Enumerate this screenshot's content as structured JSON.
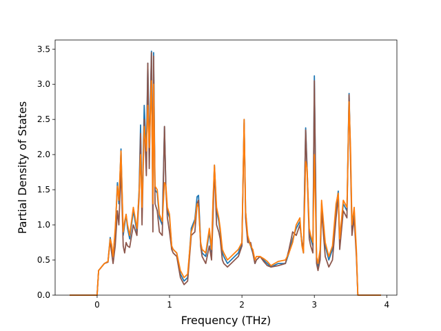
{
  "chart_data": {
    "type": "line",
    "title": "",
    "xlabel": "Frequency (THz)",
    "ylabel": "Partial Density of States",
    "xlim": [
      -0.58,
      4.14
    ],
    "ylim": [
      0.0,
      3.63
    ],
    "xticks": [
      0,
      1,
      2,
      3,
      4
    ],
    "xtick_labels": [
      "0",
      "1",
      "2",
      "3",
      "4"
    ],
    "yticks": [
      0.0,
      0.5,
      1.0,
      1.5,
      2.0,
      2.5,
      3.0,
      3.5
    ],
    "ytick_labels": [
      "0.0",
      "0.5",
      "1.0",
      "1.5",
      "2.0",
      "2.5",
      "3.0",
      "3.5"
    ],
    "grid": false,
    "legend": "none",
    "series": [
      {
        "color": "#1f77b4",
        "x": [
          -0.38,
          0.0,
          0.02,
          0.1,
          0.15,
          0.18,
          0.2,
          0.22,
          0.25,
          0.28,
          0.3,
          0.33,
          0.36,
          0.38,
          0.4,
          0.42,
          0.45,
          0.5,
          0.55,
          0.58,
          0.6,
          0.62,
          0.65,
          0.68,
          0.7,
          0.72,
          0.75,
          0.77,
          0.78,
          0.8,
          0.83,
          0.86,
          0.9,
          0.93,
          0.95,
          0.97,
          1.0,
          1.03,
          1.05,
          1.1,
          1.15,
          1.2,
          1.25,
          1.3,
          1.35,
          1.38,
          1.4,
          1.43,
          1.45,
          1.5,
          1.55,
          1.58,
          1.6,
          1.62,
          1.65,
          1.68,
          1.7,
          1.73,
          1.75,
          1.8,
          1.85,
          1.9,
          1.95,
          2.0,
          2.03,
          2.05,
          2.08,
          2.12,
          2.15,
          2.18,
          2.2,
          2.25,
          2.3,
          2.35,
          2.4,
          2.5,
          2.6,
          2.65,
          2.7,
          2.75,
          2.8,
          2.83,
          2.85,
          2.88,
          2.9,
          2.93,
          2.95,
          2.98,
          3.0,
          3.03,
          3.05,
          3.08,
          3.1,
          3.15,
          3.2,
          3.25,
          3.3,
          3.33,
          3.35,
          3.4,
          3.45,
          3.48,
          3.5,
          3.52,
          3.55,
          3.58,
          3.6,
          3.92
        ],
        "y": [
          0.0,
          0.0,
          0.35,
          0.45,
          0.48,
          0.82,
          0.7,
          0.55,
          0.9,
          1.6,
          1.3,
          2.08,
          0.85,
          1.0,
          1.15,
          0.95,
          0.8,
          1.2,
          0.9,
          1.5,
          2.42,
          1.2,
          2.7,
          2.0,
          3.3,
          2.0,
          3.47,
          1.2,
          3.45,
          1.5,
          1.45,
          1.1,
          1.0,
          2.4,
          1.5,
          1.2,
          1.1,
          0.7,
          0.65,
          0.6,
          0.3,
          0.2,
          0.25,
          0.95,
          1.08,
          1.4,
          1.42,
          0.75,
          0.6,
          0.55,
          0.9,
          0.6,
          1.3,
          1.85,
          1.2,
          1.05,
          0.9,
          0.6,
          0.55,
          0.45,
          0.5,
          0.55,
          0.6,
          0.75,
          2.5,
          1.2,
          0.8,
          0.7,
          0.6,
          0.45,
          0.5,
          0.55,
          0.5,
          0.45,
          0.4,
          0.45,
          0.45,
          0.6,
          0.8,
          0.95,
          1.05,
          0.7,
          0.6,
          2.38,
          1.8,
          0.9,
          0.8,
          0.7,
          3.12,
          0.5,
          0.4,
          0.6,
          1.3,
          0.7,
          0.5,
          0.65,
          1.25,
          1.48,
          0.75,
          1.3,
          1.2,
          2.87,
          2.0,
          0.95,
          1.2,
          0.6,
          0.0,
          0.0
        ]
      },
      {
        "color": "#8c564b",
        "x": [
          -0.38,
          0.0,
          0.02,
          0.1,
          0.15,
          0.18,
          0.2,
          0.22,
          0.25,
          0.28,
          0.3,
          0.33,
          0.36,
          0.38,
          0.4,
          0.42,
          0.45,
          0.5,
          0.55,
          0.58,
          0.6,
          0.62,
          0.65,
          0.68,
          0.7,
          0.72,
          0.75,
          0.77,
          0.78,
          0.8,
          0.83,
          0.86,
          0.9,
          0.93,
          0.95,
          0.97,
          1.0,
          1.03,
          1.05,
          1.1,
          1.15,
          1.2,
          1.25,
          1.3,
          1.35,
          1.38,
          1.4,
          1.43,
          1.45,
          1.5,
          1.55,
          1.58,
          1.6,
          1.62,
          1.65,
          1.68,
          1.7,
          1.73,
          1.75,
          1.8,
          1.85,
          1.9,
          1.95,
          2.0,
          2.03,
          2.05,
          2.08,
          2.12,
          2.15,
          2.18,
          2.2,
          2.25,
          2.3,
          2.35,
          2.4,
          2.5,
          2.6,
          2.65,
          2.7,
          2.75,
          2.8,
          2.83,
          2.85,
          2.88,
          2.9,
          2.93,
          2.95,
          2.98,
          3.0,
          3.03,
          3.05,
          3.08,
          3.1,
          3.15,
          3.2,
          3.25,
          3.3,
          3.33,
          3.35,
          3.4,
          3.45,
          3.48,
          3.5,
          3.52,
          3.55,
          3.58,
          3.6,
          3.92
        ],
        "y": [
          0.0,
          0.0,
          0.35,
          0.45,
          0.47,
          0.78,
          0.6,
          0.45,
          0.7,
          1.2,
          1.0,
          1.8,
          0.7,
          0.6,
          0.75,
          0.7,
          0.68,
          1.0,
          0.85,
          1.4,
          2.3,
          1.0,
          2.5,
          1.7,
          3.3,
          1.8,
          3.45,
          0.9,
          3.4,
          1.3,
          1.2,
          0.9,
          0.85,
          2.4,
          1.5,
          1.1,
          0.9,
          0.65,
          0.6,
          0.55,
          0.25,
          0.15,
          0.2,
          0.85,
          0.9,
          1.3,
          1.35,
          0.7,
          0.55,
          0.45,
          0.7,
          0.5,
          1.1,
          1.8,
          1.0,
          0.9,
          0.8,
          0.5,
          0.45,
          0.4,
          0.45,
          0.5,
          0.55,
          0.7,
          2.45,
          1.1,
          0.75,
          0.75,
          0.6,
          0.45,
          0.5,
          0.55,
          0.48,
          0.42,
          0.4,
          0.42,
          0.45,
          0.65,
          0.9,
          0.85,
          1.0,
          0.75,
          0.65,
          2.35,
          1.75,
          0.8,
          0.7,
          0.6,
          3.05,
          0.45,
          0.35,
          0.5,
          1.2,
          0.55,
          0.4,
          0.5,
          1.1,
          1.4,
          0.65,
          1.2,
          1.1,
          2.85,
          1.9,
          0.85,
          1.1,
          0.55,
          0.0,
          0.0
        ]
      },
      {
        "color": "#ff7f0e",
        "x": [
          -0.38,
          0.0,
          0.02,
          0.1,
          0.15,
          0.18,
          0.2,
          0.22,
          0.25,
          0.28,
          0.3,
          0.33,
          0.36,
          0.38,
          0.4,
          0.42,
          0.45,
          0.5,
          0.55,
          0.58,
          0.6,
          0.62,
          0.65,
          0.68,
          0.7,
          0.72,
          0.75,
          0.77,
          0.78,
          0.8,
          0.83,
          0.86,
          0.9,
          0.93,
          0.95,
          0.97,
          1.0,
          1.03,
          1.05,
          1.1,
          1.15,
          1.2,
          1.25,
          1.3,
          1.35,
          1.38,
          1.4,
          1.43,
          1.45,
          1.5,
          1.55,
          1.58,
          1.6,
          1.62,
          1.65,
          1.68,
          1.7,
          1.73,
          1.75,
          1.8,
          1.85,
          1.9,
          1.95,
          2.0,
          2.03,
          2.05,
          2.08,
          2.12,
          2.15,
          2.18,
          2.2,
          2.25,
          2.3,
          2.35,
          2.4,
          2.5,
          2.6,
          2.65,
          2.7,
          2.75,
          2.8,
          2.83,
          2.85,
          2.88,
          2.9,
          2.93,
          2.95,
          2.98,
          3.0,
          3.03,
          3.05,
          3.08,
          3.1,
          3.15,
          3.2,
          3.25,
          3.3,
          3.33,
          3.35,
          3.4,
          3.45,
          3.48,
          3.5,
          3.52,
          3.55,
          3.58,
          3.6,
          3.92
        ],
        "y": [
          0.0,
          0.0,
          0.35,
          0.45,
          0.48,
          0.8,
          0.72,
          0.55,
          0.95,
          1.55,
          1.35,
          2.05,
          0.9,
          1.05,
          1.15,
          1.0,
          0.85,
          1.25,
          0.95,
          1.45,
          2.0,
          1.25,
          2.4,
          2.05,
          2.7,
          2.1,
          3.05,
          1.3,
          3.0,
          1.55,
          1.5,
          1.15,
          1.05,
          1.6,
          1.55,
          1.25,
          1.15,
          0.7,
          0.65,
          0.6,
          0.35,
          0.25,
          0.3,
          0.9,
          1.05,
          1.3,
          1.25,
          0.75,
          0.65,
          0.6,
          0.95,
          0.65,
          1.35,
          1.85,
          1.25,
          1.1,
          0.95,
          0.65,
          0.6,
          0.5,
          0.55,
          0.6,
          0.65,
          0.75,
          2.5,
          1.2,
          0.85,
          0.7,
          0.65,
          0.5,
          0.55,
          0.55,
          0.52,
          0.48,
          0.42,
          0.48,
          0.5,
          0.6,
          0.75,
          1.0,
          1.1,
          0.7,
          0.6,
          1.9,
          1.8,
          0.95,
          0.85,
          0.75,
          2.0,
          0.55,
          0.45,
          0.65,
          1.35,
          0.75,
          0.55,
          0.7,
          1.3,
          1.45,
          0.8,
          1.35,
          1.25,
          2.75,
          2.1,
          1.0,
          1.25,
          0.65,
          0.0,
          0.0
        ]
      }
    ]
  }
}
